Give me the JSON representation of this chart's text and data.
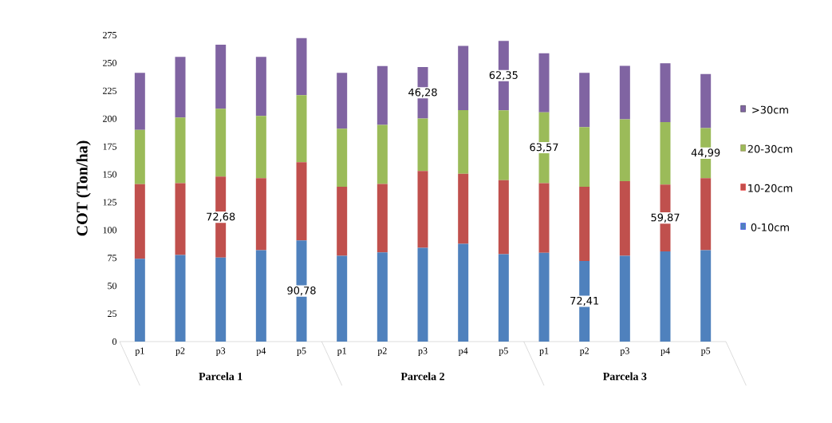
{
  "chart_data": {
    "type": "bar",
    "stacked": true,
    "ylabel": "COT (Ton/ha)",
    "categories": [
      "p1",
      "p2",
      "p3",
      "p4",
      "p5",
      "p1",
      "p2",
      "p3",
      "p4",
      "p5",
      "p1",
      "p2",
      "p3",
      "p4",
      "p5"
    ],
    "annotations": [
      "Parcela 1",
      "Parcela 2",
      "Parcela 3"
    ],
    "ylim": [
      0,
      275
    ],
    "yticks": [
      0,
      25,
      50,
      75,
      100,
      125,
      150,
      175,
      200,
      225,
      250,
      275
    ],
    "legend": "right",
    "grid": false,
    "series": [
      {
        "name": "0-10cm",
        "color": "#4f81bd",
        "values": [
          74.3,
          77.7,
          75.3,
          82.0,
          90.78,
          77.0,
          80.0,
          84.1,
          87.7,
          78.4,
          79.6,
          72.41,
          77.0,
          81.0,
          82.0
        ],
        "value_labels": [
          null,
          null,
          null,
          null,
          "90,78",
          null,
          null,
          null,
          null,
          null,
          null,
          "72,41",
          null,
          null,
          null
        ]
      },
      {
        "name": "10-20cm",
        "color": "#c0504d",
        "values": [
          67.0,
          64.5,
          72.68,
          64.6,
          70.2,
          61.9,
          61.5,
          68.9,
          62.9,
          66.4,
          62.6,
          66.5,
          66.9,
          59.87,
          64.6
        ],
        "value_labels": [
          null,
          null,
          "72,68",
          null,
          null,
          null,
          null,
          null,
          null,
          null,
          null,
          null,
          null,
          "59,87",
          null
        ]
      },
      {
        "name": "20-30cm",
        "color": "#9bbb59",
        "values": [
          48.7,
          58.8,
          61.0,
          55.9,
          60.2,
          52.1,
          52.9,
          47.1,
          57.1,
          62.7,
          63.57,
          53.6,
          55.5,
          56.0,
          44.99
        ],
        "value_labels": [
          null,
          null,
          null,
          null,
          null,
          null,
          null,
          null,
          null,
          null,
          "63,57",
          null,
          null,
          null,
          "44,99"
        ]
      },
      {
        "name": ">30cm",
        "color": "#8064a2",
        "values": [
          51.2,
          54.4,
          57.4,
          52.9,
          51.1,
          50.2,
          52.8,
          46.28,
          57.7,
          62.35,
          52.9,
          48.7,
          48.1,
          52.8,
          48.5
        ],
        "value_labels": [
          null,
          null,
          null,
          null,
          null,
          null,
          null,
          "46,28",
          null,
          "62,35",
          null,
          null,
          null,
          null,
          null
        ]
      }
    ]
  }
}
